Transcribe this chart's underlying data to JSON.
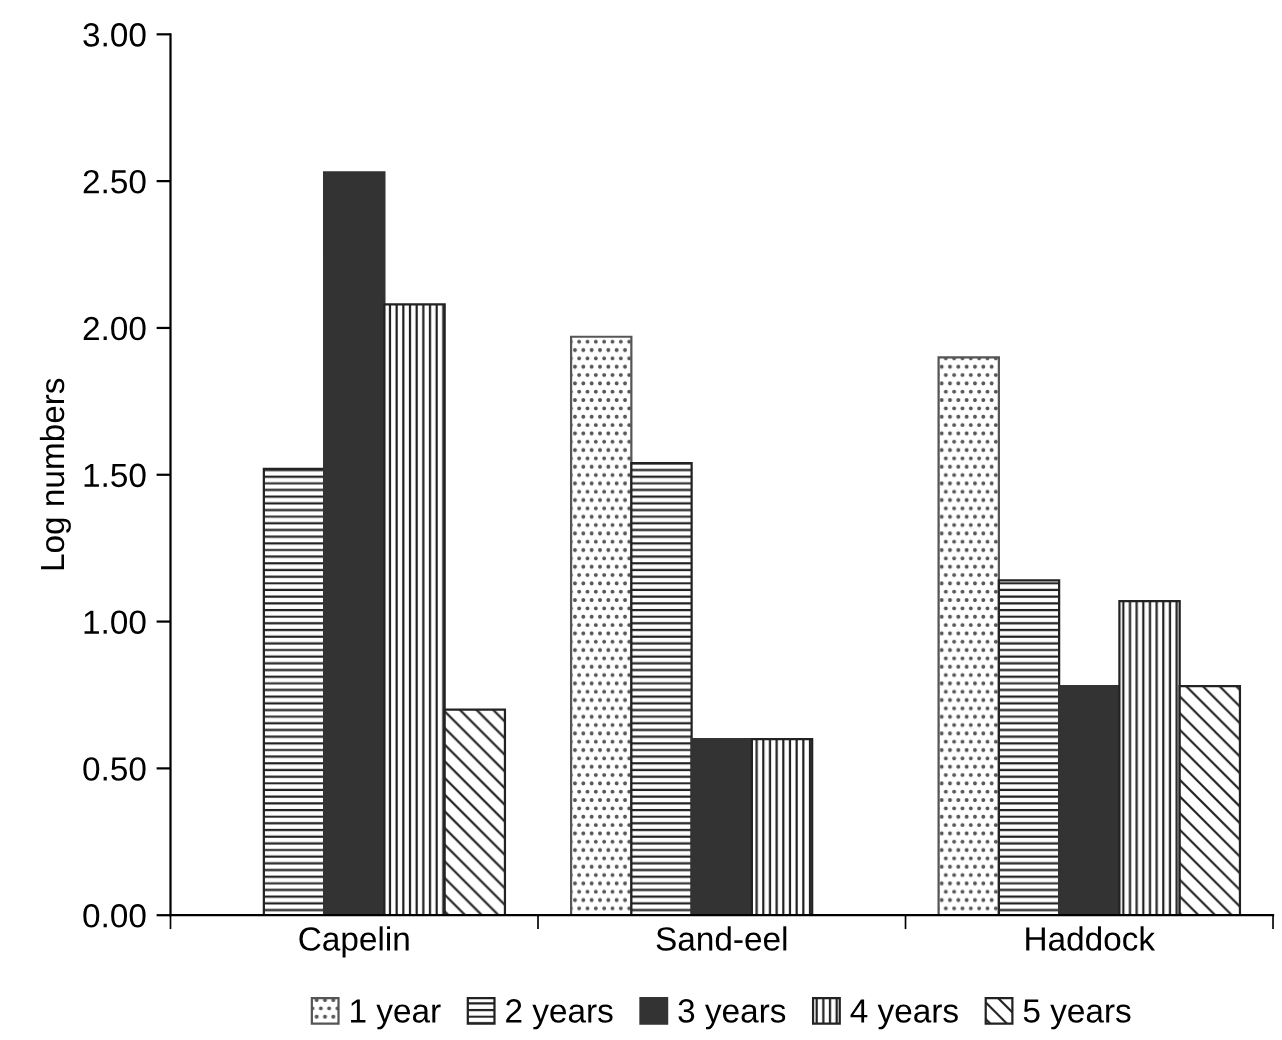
{
  "chart_data": {
    "type": "bar",
    "ylabel": "Log numbers",
    "categories": [
      "Capelin",
      "Sand-eel",
      "Haddock"
    ],
    "series": [
      {
        "name": "1 year",
        "color": "#555555",
        "values": [
          null,
          1.97,
          1.9
        ]
      },
      {
        "name": "2 years",
        "color": "#222222",
        "values": [
          1.52,
          1.54,
          1.14
        ]
      },
      {
        "name": "3 years",
        "color": "#333333",
        "values": [
          2.53,
          0.6,
          0.78
        ]
      },
      {
        "name": "4 years",
        "color": "#222222",
        "values": [
          2.08,
          0.6,
          1.07
        ]
      },
      {
        "name": "5 years",
        "color": "#222222",
        "values": [
          0.7,
          null,
          0.78
        ]
      }
    ],
    "ylim": [
      0,
      3
    ],
    "yticks": [
      {
        "value": 0,
        "label": "0.00"
      },
      {
        "value": 0.5,
        "label": "0.50"
      },
      {
        "value": 1,
        "label": "1.00"
      },
      {
        "value": 1.5,
        "label": "1.50"
      },
      {
        "value": 2,
        "label": "2.00"
      },
      {
        "value": 2.5,
        "label": "2.50"
      },
      {
        "value": 3,
        "label": "3.00"
      }
    ],
    "grid": false,
    "legend": "bottom"
  }
}
